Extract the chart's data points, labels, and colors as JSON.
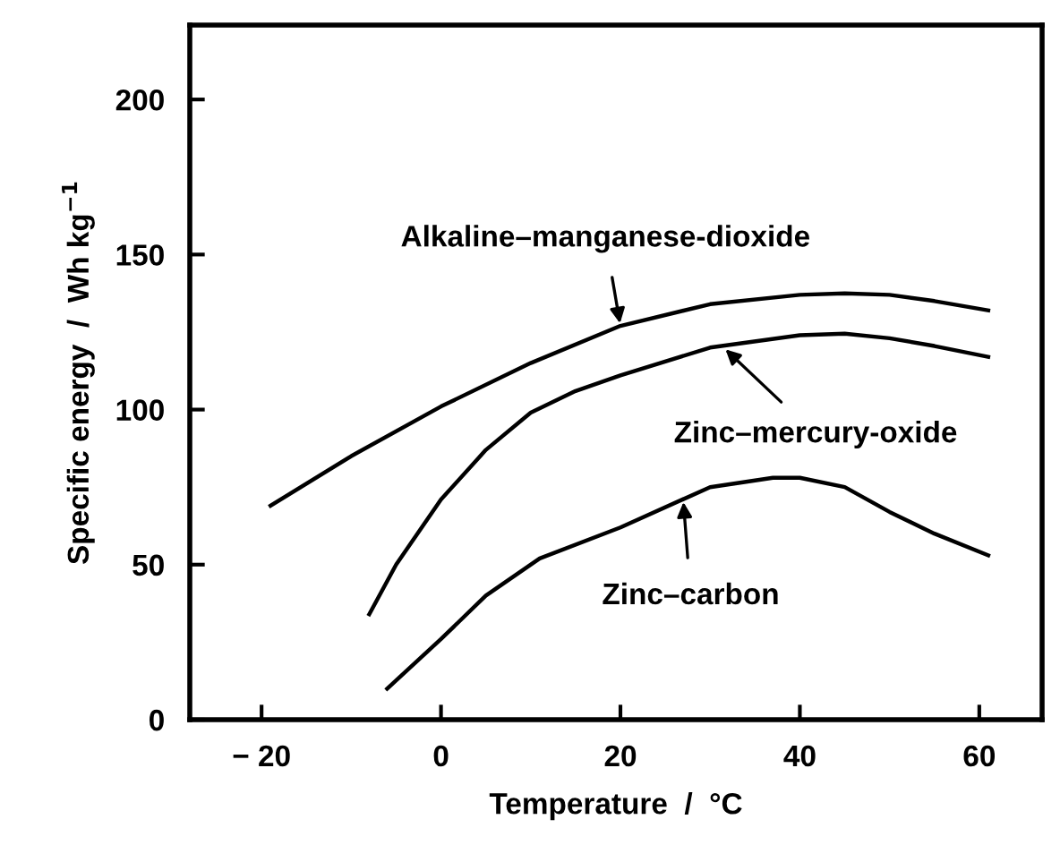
{
  "chart_data": {
    "type": "line",
    "xlabel": "Temperature  /  °C",
    "ylabel": "Specific energy  /  Wh kg$^{−1}$",
    "xlim": [
      -28,
      67
    ],
    "ylim": [
      0,
      224
    ],
    "xticks": [
      {
        "value": -20,
        "label": "− 20"
      },
      0,
      20,
      40,
      60
    ],
    "yticks": [
      0,
      50,
      100,
      150,
      200
    ],
    "grid": false,
    "legend": false,
    "marker": "none",
    "line_style": "solid",
    "series": [
      {
        "color": "#000000",
        "x": [
          -19,
          -10,
          0,
          10,
          20,
          30,
          40,
          45,
          50,
          55,
          61
        ],
        "values": [
          69,
          85,
          101,
          115,
          127,
          134,
          137,
          137.5,
          137,
          135,
          132
        ]
      },
      {
        "color": "#000000",
        "x": [
          -8,
          -5,
          0,
          5,
          10,
          15,
          20,
          30,
          40,
          45,
          50,
          55,
          61
        ],
        "values": [
          34,
          50,
          71,
          87,
          99,
          106,
          111,
          120,
          124,
          124.5,
          123,
          120.5,
          117
        ]
      },
      {
        "color": "#000000",
        "x": [
          -6,
          0,
          5,
          11,
          20,
          30,
          37,
          40,
          45,
          50,
          55,
          61
        ],
        "values": [
          10,
          26,
          40,
          52,
          62,
          75,
          78,
          78,
          75,
          67,
          60,
          53
        ]
      }
    ],
    "annotations": [
      {
        "text": "Alkaline–manganese-dioxide",
        "x": 20,
        "y": 127
      },
      {
        "text": "Zinc–mercury-oxide",
        "x": 31.5,
        "y": 120
      },
      {
        "text": "Zinc–carbon",
        "x": 27,
        "y": 71
      }
    ]
  }
}
